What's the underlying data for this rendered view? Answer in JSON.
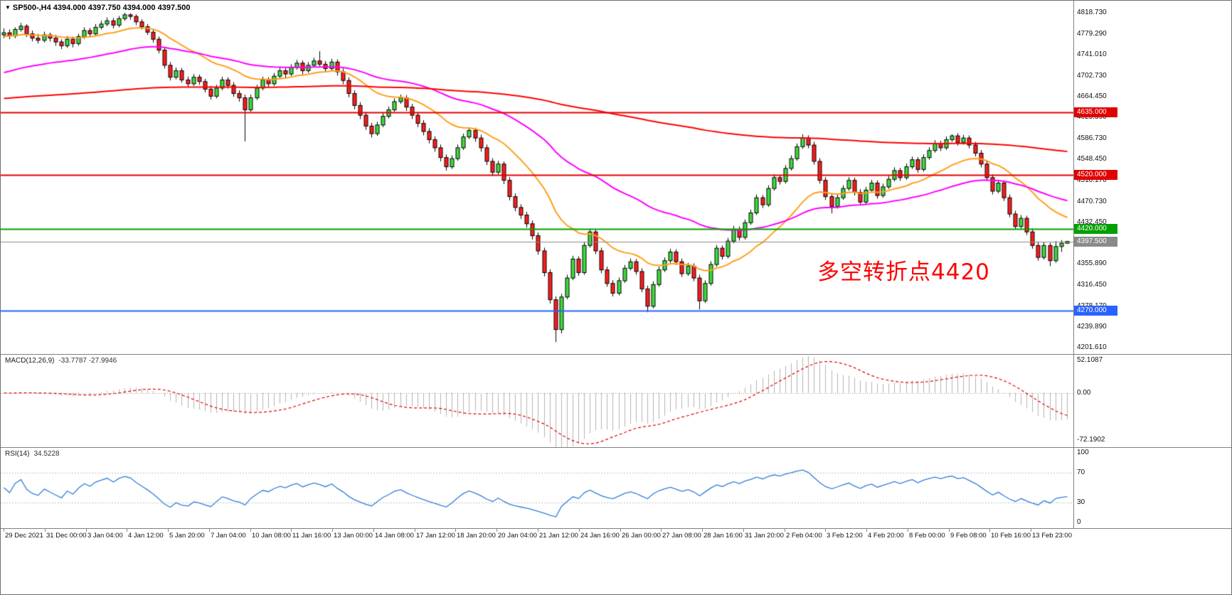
{
  "header": {
    "dropdown_icon": "▼",
    "title_text": "SP500-,H4 4394.000 4397.750 4394.000 4397.500"
  },
  "chart_data": {
    "type": "candlestick",
    "symbol": "SP500-",
    "timeframe": "H4",
    "ohlc_display": {
      "open": "4394.000",
      "high": "4397.750",
      "low": "4394.000",
      "close": "4397.500"
    },
    "style": {
      "up": "#3cdc3c",
      "down": "#ff1c1c",
      "wick": "#000000"
    },
    "price_axis": {
      "max": 4841,
      "min": 4190,
      "ticks": [
        "4818.730",
        "4779.290",
        "4741.010",
        "4702.730",
        "4664.450",
        "4625.590",
        "4586.730",
        "4548.450",
        "4510.170",
        "4470.730",
        "4432.450",
        "4394.170",
        "4355.890",
        "4316.450",
        "4278.170",
        "4239.890",
        "4201.610"
      ]
    },
    "levels": [
      {
        "price": 4635.0,
        "label": "4635.000",
        "color": "#e00000",
        "width": 2
      },
      {
        "price": 4520.0,
        "label": "4520.000",
        "color": "#e00000",
        "width": 2
      },
      {
        "price": 4420.0,
        "label": "4420.000",
        "color": "#00a000",
        "width": 2
      },
      {
        "price": 4397.5,
        "label": "4397.500",
        "color": "#8a8a8a",
        "width": 1
      },
      {
        "price": 4270.0,
        "label": "4270.000",
        "color": "#2962ff",
        "width": 2
      }
    ],
    "moving_averages": [
      {
        "name": "ma-fast",
        "period": 20,
        "seed": 4775,
        "color": "#ff9f1c"
      },
      {
        "name": "ma-mid",
        "period": 55,
        "seed": 4706,
        "color": "#ff00ff"
      },
      {
        "name": "ma-slow",
        "period": 300,
        "seed": 4660,
        "color": "#ff0000"
      }
    ],
    "annotation": {
      "text": "多空转折点4420",
      "color": "#ff0000"
    },
    "macd": {
      "label": "MACD(12,26,9)",
      "values_text": "-33.7787 -27.9946",
      "scale": [
        "52.1087",
        "0.00",
        "-72.1902"
      ],
      "params": [
        12,
        26,
        9
      ]
    },
    "rsi": {
      "label": "RSI(14)",
      "value_text": "34.5228",
      "scale": [
        "100",
        "70",
        "30",
        "0"
      ],
      "period": 14,
      "levels": [
        70,
        30
      ]
    },
    "time_axis": [
      "29 Dec 2021",
      "31 Dec 00:00",
      "3 Jan 04:00",
      "4 Jan 12:00",
      "5 Jan 20:00",
      "7 Jan 04:00",
      "10 Jan 08:00",
      "11 Jan 16:00",
      "13 Jan 00:00",
      "14 Jan 08:00",
      "17 Jan 12:00",
      "18 Jan 20:00",
      "20 Jan 04:00",
      "21 Jan 12:00",
      "24 Jan 16:00",
      "26 Jan 00:00",
      "27 Jan 08:00",
      "28 Jan 16:00",
      "31 Jan 20:00",
      "2 Feb 04:00",
      "3 Feb 12:00",
      "4 Feb 20:00",
      "8 Feb 00:00",
      "9 Feb 08:00",
      "10 Feb 16:00",
      "13 Feb 23:00"
    ],
    "candles": [
      [
        4778,
        4790,
        4772,
        4782
      ],
      [
        4782,
        4788,
        4770,
        4776
      ],
      [
        4776,
        4792,
        4772,
        4788
      ],
      [
        4788,
        4800,
        4784,
        4794
      ],
      [
        4794,
        4798,
        4774,
        4780
      ],
      [
        4780,
        4786,
        4766,
        4772
      ],
      [
        4772,
        4780,
        4762,
        4768
      ],
      [
        4768,
        4784,
        4764,
        4778
      ],
      [
        4778,
        4782,
        4766,
        4772
      ],
      [
        4772,
        4778,
        4758,
        4765
      ],
      [
        4765,
        4770,
        4752,
        4758
      ],
      [
        4758,
        4776,
        4754,
        4770
      ],
      [
        4770,
        4775,
        4755,
        4762
      ],
      [
        4762,
        4780,
        4758,
        4775
      ],
      [
        4775,
        4792,
        4771,
        4786
      ],
      [
        4786,
        4791,
        4774,
        4780
      ],
      [
        4780,
        4798,
        4776,
        4792
      ],
      [
        4792,
        4804,
        4788,
        4798
      ],
      [
        4798,
        4810,
        4794,
        4804
      ],
      [
        4804,
        4809,
        4790,
        4796
      ],
      [
        4796,
        4813,
        4792,
        4808
      ],
      [
        4808,
        4818.7,
        4804,
        4815
      ],
      [
        4815,
        4818,
        4806,
        4812
      ],
      [
        4812,
        4816,
        4796,
        4802
      ],
      [
        4802,
        4807,
        4788,
        4793
      ],
      [
        4793,
        4798,
        4778,
        4783
      ],
      [
        4783,
        4788,
        4764,
        4770
      ],
      [
        4770,
        4775,
        4744,
        4750
      ],
      [
        4750,
        4756,
        4716,
        4722
      ],
      [
        4722,
        4728,
        4694,
        4700
      ],
      [
        4700,
        4718,
        4696,
        4712
      ],
      [
        4712,
        4717,
        4690,
        4695
      ],
      [
        4695,
        4701,
        4682,
        4688
      ],
      [
        4688,
        4706,
        4684,
        4700
      ],
      [
        4700,
        4705,
        4686,
        4692
      ],
      [
        4692,
        4697,
        4672,
        4678
      ],
      [
        4678,
        4684,
        4659,
        4665
      ],
      [
        4665,
        4686,
        4661,
        4680
      ],
      [
        4680,
        4701,
        4676,
        4695
      ],
      [
        4695,
        4700,
        4679,
        4685
      ],
      [
        4685,
        4691,
        4664,
        4670
      ],
      [
        4670,
        4676,
        4655,
        4662
      ],
      [
        4662,
        4668,
        4582,
        4640
      ],
      [
        4640,
        4668,
        4636,
        4662
      ],
      [
        4662,
        4686,
        4658,
        4680
      ],
      [
        4680,
        4701,
        4676,
        4695
      ],
      [
        4695,
        4700,
        4681,
        4688
      ],
      [
        4688,
        4708,
        4684,
        4702
      ],
      [
        4702,
        4718,
        4698,
        4712
      ],
      [
        4712,
        4717,
        4699,
        4706
      ],
      [
        4706,
        4724,
        4702,
        4718
      ],
      [
        4718,
        4732,
        4714,
        4726
      ],
      [
        4726,
        4731,
        4705,
        4712
      ],
      [
        4712,
        4728,
        4708,
        4722
      ],
      [
        4722,
        4736,
        4718,
        4730
      ],
      [
        4730,
        4748,
        4720,
        4724
      ],
      [
        4724,
        4730,
        4709,
        4716
      ],
      [
        4716,
        4734,
        4712,
        4728
      ],
      [
        4728,
        4733,
        4703,
        4710
      ],
      [
        4710,
        4716,
        4687,
        4694
      ],
      [
        4694,
        4700,
        4663,
        4670
      ],
      [
        4670,
        4676,
        4641,
        4648
      ],
      [
        4648,
        4654,
        4623,
        4630
      ],
      [
        4630,
        4636,
        4603,
        4610
      ],
      [
        4610,
        4616,
        4589,
        4596
      ],
      [
        4596,
        4618,
        4592,
        4612
      ],
      [
        4612,
        4634,
        4608,
        4628
      ],
      [
        4628,
        4646,
        4624,
        4640
      ],
      [
        4640,
        4661,
        4636,
        4655
      ],
      [
        4655,
        4668,
        4651,
        4662
      ],
      [
        4662,
        4667,
        4638,
        4645
      ],
      [
        4645,
        4651,
        4623,
        4630
      ],
      [
        4630,
        4636,
        4608,
        4615
      ],
      [
        4615,
        4621,
        4593,
        4600
      ],
      [
        4600,
        4606,
        4578,
        4585
      ],
      [
        4585,
        4591,
        4563,
        4570
      ],
      [
        4570,
        4576,
        4545,
        4552
      ],
      [
        4552,
        4558,
        4528,
        4535
      ],
      [
        4535,
        4556,
        4531,
        4550
      ],
      [
        4550,
        4576,
        4546,
        4570
      ],
      [
        4570,
        4596,
        4566,
        4590
      ],
      [
        4590,
        4608,
        4586,
        4602
      ],
      [
        4602,
        4607,
        4581,
        4588
      ],
      [
        4588,
        4594,
        4563,
        4570
      ],
      [
        4570,
        4576,
        4538,
        4545
      ],
      [
        4545,
        4551,
        4518,
        4525
      ],
      [
        4525,
        4546,
        4521,
        4540
      ],
      [
        4540,
        4545,
        4503,
        4510
      ],
      [
        4510,
        4516,
        4473,
        4480
      ],
      [
        4480,
        4486,
        4453,
        4460
      ],
      [
        4460,
        4466,
        4439,
        4446
      ],
      [
        4446,
        4452,
        4423,
        4430
      ],
      [
        4430,
        4436,
        4401,
        4408
      ],
      [
        4408,
        4414,
        4373,
        4380
      ],
      [
        4380,
        4386,
        4333,
        4340
      ],
      [
        4340,
        4346,
        4283,
        4290
      ],
      [
        4290,
        4296,
        4212,
        4235
      ],
      [
        4235,
        4301,
        4228,
        4295
      ],
      [
        4295,
        4336,
        4291,
        4330
      ],
      [
        4330,
        4371,
        4326,
        4365
      ],
      [
        4365,
        4370,
        4334,
        4340
      ],
      [
        4340,
        4396,
        4336,
        4390
      ],
      [
        4390,
        4421,
        4386,
        4415
      ],
      [
        4415,
        4420,
        4374,
        4380
      ],
      [
        4380,
        4386,
        4339,
        4345
      ],
      [
        4345,
        4351,
        4314,
        4320
      ],
      [
        4320,
        4326,
        4296,
        4302
      ],
      [
        4302,
        4331,
        4298,
        4325
      ],
      [
        4325,
        4354,
        4321,
        4348
      ],
      [
        4348,
        4366,
        4344,
        4360
      ],
      [
        4360,
        4365,
        4336,
        4342
      ],
      [
        4342,
        4348,
        4304,
        4310
      ],
      [
        4310,
        4316,
        4267,
        4278
      ],
      [
        4278,
        4324,
        4274,
        4318
      ],
      [
        4318,
        4351,
        4314,
        4345
      ],
      [
        4345,
        4368,
        4341,
        4362
      ],
      [
        4362,
        4384,
        4358,
        4378
      ],
      [
        4378,
        4383,
        4354,
        4360
      ],
      [
        4360,
        4366,
        4332,
        4338
      ],
      [
        4338,
        4358,
        4334,
        4352
      ],
      [
        4352,
        4357,
        4324,
        4330
      ],
      [
        4330,
        4336,
        4272,
        4288
      ],
      [
        4288,
        4326,
        4284,
        4320
      ],
      [
        4320,
        4361,
        4316,
        4355
      ],
      [
        4355,
        4391,
        4351,
        4385
      ],
      [
        4385,
        4390,
        4364,
        4370
      ],
      [
        4370,
        4404,
        4366,
        4398
      ],
      [
        4398,
        4426,
        4394,
        4420
      ],
      [
        4420,
        4425,
        4399,
        4405
      ],
      [
        4405,
        4438,
        4401,
        4432
      ],
      [
        4432,
        4456,
        4428,
        4450
      ],
      [
        4450,
        4484,
        4446,
        4478
      ],
      [
        4478,
        4483,
        4459,
        4465
      ],
      [
        4465,
        4501,
        4461,
        4495
      ],
      [
        4495,
        4521,
        4491,
        4515
      ],
      [
        4515,
        4520,
        4502,
        4508
      ],
      [
        4508,
        4538,
        4504,
        4532
      ],
      [
        4532,
        4556,
        4528,
        4550
      ],
      [
        4550,
        4578,
        4546,
        4572
      ],
      [
        4572,
        4595,
        4568,
        4588
      ],
      [
        4588,
        4593,
        4569,
        4575
      ],
      [
        4575,
        4581,
        4539,
        4545
      ],
      [
        4545,
        4551,
        4504,
        4510
      ],
      [
        4510,
        4516,
        4474,
        4480
      ],
      [
        4480,
        4486,
        4449,
        4462
      ],
      [
        4462,
        4484,
        4458,
        4478
      ],
      [
        4478,
        4501,
        4474,
        4495
      ],
      [
        4495,
        4516,
        4491,
        4510
      ],
      [
        4510,
        4515,
        4482,
        4488
      ],
      [
        4488,
        4494,
        4464,
        4470
      ],
      [
        4470,
        4498,
        4466,
        4492
      ],
      [
        4492,
        4511,
        4488,
        4505
      ],
      [
        4505,
        4510,
        4476,
        4482
      ],
      [
        4482,
        4504,
        4478,
        4498
      ],
      [
        4498,
        4518,
        4494,
        4512
      ],
      [
        4512,
        4534,
        4508,
        4528
      ],
      [
        4528,
        4533,
        4509,
        4515
      ],
      [
        4515,
        4541,
        4511,
        4535
      ],
      [
        4535,
        4554,
        4531,
        4548
      ],
      [
        4548,
        4553,
        4524,
        4530
      ],
      [
        4530,
        4558,
        4526,
        4552
      ],
      [
        4552,
        4571,
        4548,
        4565
      ],
      [
        4565,
        4584,
        4561,
        4578
      ],
      [
        4578,
        4583,
        4564,
        4570
      ],
      [
        4570,
        4591,
        4566,
        4585
      ],
      [
        4585,
        4595,
        4581,
        4592
      ],
      [
        4592,
        4597,
        4574,
        4580
      ],
      [
        4580,
        4594,
        4576,
        4588
      ],
      [
        4588,
        4593,
        4569,
        4575
      ],
      [
        4575,
        4581,
        4554,
        4560
      ],
      [
        4560,
        4566,
        4534,
        4540
      ],
      [
        4540,
        4546,
        4509,
        4515
      ],
      [
        4515,
        4521,
        4484,
        4490
      ],
      [
        4490,
        4511,
        4486,
        4505
      ],
      [
        4505,
        4510,
        4472,
        4478
      ],
      [
        4478,
        4484,
        4442,
        4448
      ],
      [
        4448,
        4454,
        4419,
        4425
      ],
      [
        4425,
        4446,
        4421,
        4440
      ],
      [
        4440,
        4445,
        4409,
        4415
      ],
      [
        4415,
        4421,
        4384,
        4390
      ],
      [
        4390,
        4396,
        4362,
        4368
      ],
      [
        4368,
        4396,
        4364,
        4390
      ],
      [
        4390,
        4395,
        4352,
        4362
      ],
      [
        4362,
        4398,
        4358,
        4388
      ],
      [
        4388,
        4400,
        4378,
        4394
      ],
      [
        4394,
        4397.75,
        4394,
        4397.5
      ]
    ]
  }
}
